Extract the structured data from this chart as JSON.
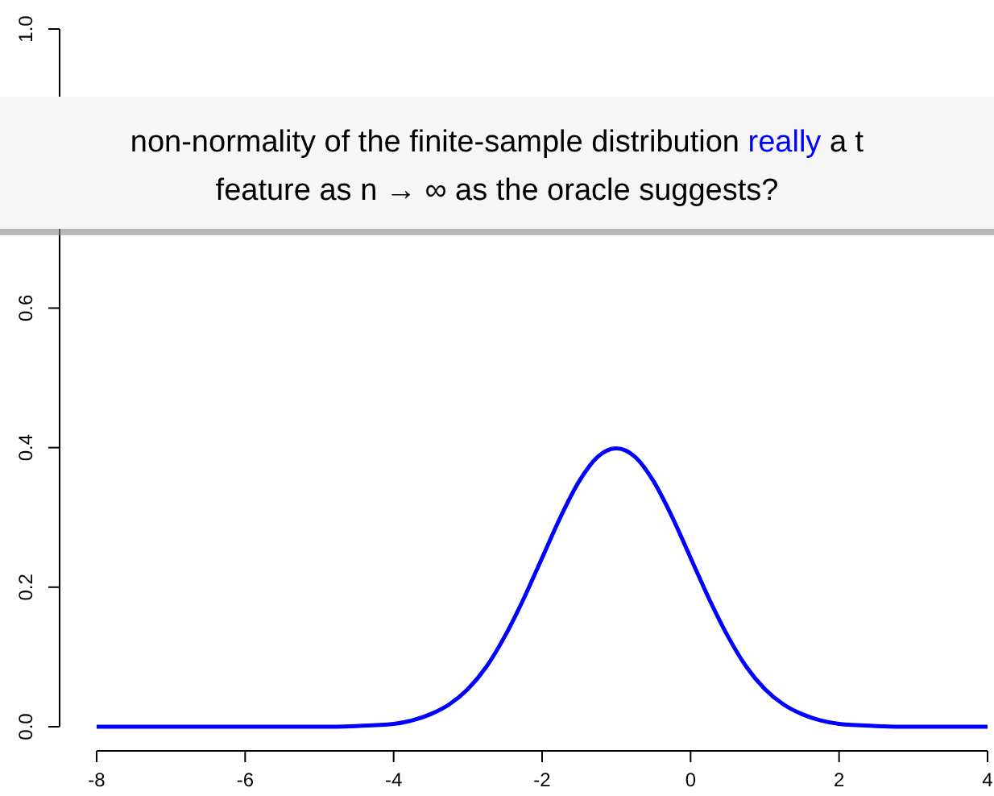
{
  "chart_data": {
    "type": "line",
    "x": [
      -8,
      -7,
      -6,
      -5,
      -4.5,
      -4,
      -3.75,
      -3.5,
      -3.25,
      -3,
      -2.75,
      -2.5,
      -2.25,
      -2,
      -1.75,
      -1.5,
      -1.25,
      -1,
      -0.75,
      -0.5,
      -0.25,
      0,
      0.25,
      0.5,
      0.75,
      1,
      1.25,
      1.5,
      1.75,
      2,
      2.5,
      3,
      4
    ],
    "series": [
      {
        "color": "#0000ff",
        "values": [
          0,
          0,
          0,
          0,
          0.001,
          0.004,
          0.009,
          0.018,
          0.032,
          0.054,
          0.086,
          0.13,
          0.183,
          0.242,
          0.301,
          0.352,
          0.387,
          0.399,
          0.387,
          0.352,
          0.301,
          0.242,
          0.183,
          0.13,
          0.086,
          0.054,
          0.032,
          0.018,
          0.009,
          0.004,
          0.001,
          0,
          0
        ]
      }
    ],
    "xlim": [
      -8,
      4
    ],
    "xticks": [
      -8,
      -6,
      -4,
      -2,
      0,
      2,
      4
    ],
    "ylim": [
      0,
      1
    ],
    "yticks": [
      {
        "value": 0,
        "label": "0.0"
      },
      {
        "value": 0.2,
        "label": "0.2"
      },
      {
        "value": 0.4,
        "label": "0.4"
      },
      {
        "value": 0.6,
        "label": "0.6"
      },
      {
        "value": 1,
        "label": "1.0"
      }
    ],
    "grid": false,
    "marker": "none",
    "line_style": "solid",
    "annotations": [
      "non-normality of the finite-sample distribution",
      "really",
      "a t",
      "feature as n → ∞ as the oracle suggests?"
    ]
  }
}
